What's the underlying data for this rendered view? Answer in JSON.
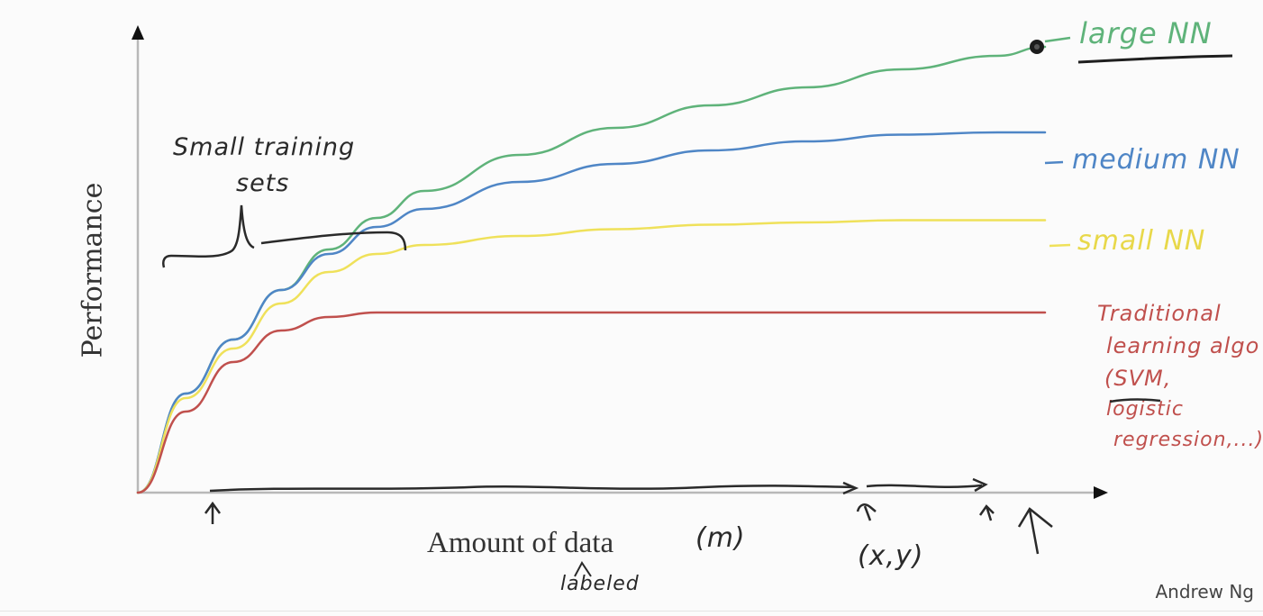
{
  "slide": {
    "credit": "Andrew Ng"
  },
  "annotations": {
    "small_training_sets_line1": "Small training",
    "small_training_sets_line2": "sets",
    "m_label": "(m)",
    "labeled": "labeled",
    "xy_label": "(x,y)",
    "legend_large": "large NN",
    "legend_medium": "medium NN",
    "legend_small": "small NN",
    "legend_traditional_lines": [
      "Traditional",
      "learning algo",
      "(SVM,",
      "logistic",
      "regression,...)"
    ]
  },
  "colors": {
    "large_nn": "#5fb37a",
    "medium_nn": "#4f86c6",
    "small_nn": "#efe15a",
    "traditional": "#c0504d",
    "ink": "#2a2a2a",
    "axis": "#b8b8b8"
  },
  "chart_data": {
    "type": "line",
    "title": "",
    "xlabel": "Amount of data",
    "ylabel": "Performance",
    "xlim": [
      0,
      100
    ],
    "ylim": [
      0,
      100
    ],
    "grid": false,
    "legend_position": "right (handwritten labels at line ends)",
    "x": [
      0,
      5,
      10,
      15,
      20,
      25,
      30,
      40,
      50,
      60,
      70,
      80,
      90,
      95
    ],
    "series": [
      {
        "name": "large NN",
        "color": "#5fb37a",
        "values": [
          0,
          22,
          34,
          45,
          54,
          61,
          67,
          75,
          81,
          86,
          90,
          94,
          97,
          99
        ]
      },
      {
        "name": "medium NN",
        "color": "#4f86c6",
        "values": [
          0,
          22,
          34,
          45,
          53,
          59,
          63,
          69,
          73,
          76,
          78,
          79.5,
          80,
          80
        ]
      },
      {
        "name": "small NN",
        "color": "#efe15a",
        "values": [
          0,
          21,
          32,
          42,
          49,
          53,
          55,
          57,
          58.5,
          59.5,
          60,
          60.5,
          60.5,
          60.5
        ]
      },
      {
        "name": "Traditional learning algo (SVM, logistic regression,...)",
        "color": "#c0504d",
        "values": [
          0,
          18,
          29,
          36,
          39,
          40,
          40,
          40,
          40,
          40,
          40,
          40,
          40,
          40
        ]
      }
    ],
    "annotations": [
      "Small training sets (brace over low-data region)",
      "(m) — number of labeled (x,y) examples",
      "arrows marking points along the x-axis"
    ]
  }
}
